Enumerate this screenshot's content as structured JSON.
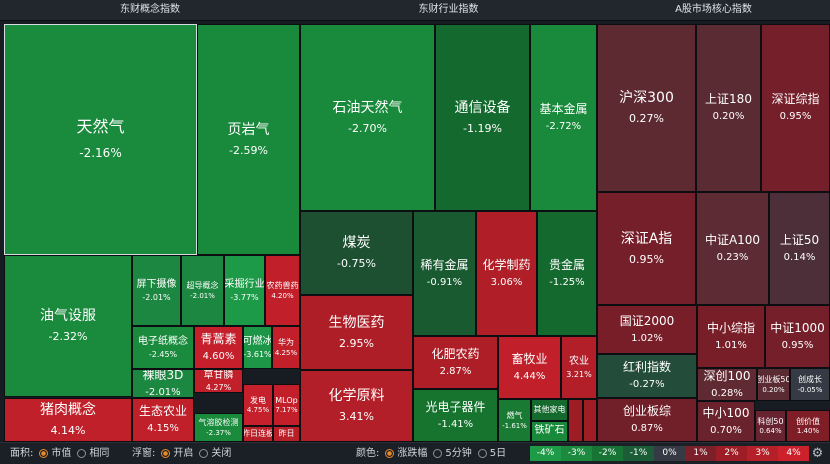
{
  "panels": [
    {
      "title": "东财概念指数",
      "tiles": [
        {
          "name": "天然气",
          "pct": "-2.16%",
          "color": "#1a8a3d",
          "selected": true
        },
        {
          "name": "页岩气",
          "pct": "-2.59%",
          "color": "#198a3c"
        },
        {
          "name": "油气设服",
          "pct": "-2.32%",
          "color": "#1a8a3d"
        },
        {
          "name": "屏下摄像",
          "pct": "-2.01%",
          "color": "#1c8740"
        },
        {
          "name": "超导概念",
          "pct": "-2.01%",
          "color": "#1c8740"
        },
        {
          "name": "采掘行业",
          "pct": "-3.77%",
          "color": "#1d9a48"
        },
        {
          "name": "农药兽药",
          "pct": "4.20%",
          "color": "#c1202a"
        },
        {
          "name": "电子纸概念",
          "pct": "-2.45%",
          "color": "#1a8a3d"
        },
        {
          "name": "青蒿素",
          "pct": "4.60%",
          "color": "#c51f2b"
        },
        {
          "name": "可燃冰",
          "pct": "-3.61%",
          "color": "#1d9747"
        },
        {
          "name": "华为",
          "pct": "4.25%",
          "color": "#c1202a"
        },
        {
          "name": "裸眼3D",
          "pct": "-2.01%",
          "color": "#1c8740"
        },
        {
          "name": "草甘膦",
          "pct": "4.27%",
          "color": "#c1202a"
        },
        {
          "name": "发电",
          "pct": "4.75%",
          "color": "#c5202b"
        },
        {
          "name": "MLOp",
          "pct": "7.17%",
          "color": "#c31f2a"
        },
        {
          "name": "猪肉概念",
          "pct": "4.14%",
          "color": "#bf2029"
        },
        {
          "name": "生态农业",
          "pct": "4.15%",
          "color": "#bf2029"
        },
        {
          "name": "气溶胶检测",
          "pct": "-2.37%",
          "color": "#1a8a3d"
        },
        {
          "name": "昨日连板",
          "pct": "",
          "color": "#b81f28"
        },
        {
          "name": "昨日",
          "pct": "",
          "color": "#b81f28"
        }
      ]
    },
    {
      "title": "东财行业指数",
      "tiles": [
        {
          "name": "石油天然气",
          "pct": "-2.70%",
          "color": "#198a3c"
        },
        {
          "name": "通信设备",
          "pct": "-1.19%",
          "color": "#146a2e"
        },
        {
          "name": "基本金属",
          "pct": "-2.72%",
          "color": "#198a3c"
        },
        {
          "name": "煤炭",
          "pct": "-0.75%",
          "color": "#1d4f31"
        },
        {
          "name": "稀有金属",
          "pct": "-0.91%",
          "color": "#1a5a31"
        },
        {
          "name": "化学制药",
          "pct": "3.06%",
          "color": "#b01e27"
        },
        {
          "name": "贵金属",
          "pct": "-1.25%",
          "color": "#146a2e"
        },
        {
          "name": "生物医药",
          "pct": "2.95%",
          "color": "#ad1e27"
        },
        {
          "name": "化肥农药",
          "pct": "2.87%",
          "color": "#ad1e27"
        },
        {
          "name": "畜牧业",
          "pct": "4.44%",
          "color": "#c1202a"
        },
        {
          "name": "农业",
          "pct": "3.21%",
          "color": "#b31f28"
        },
        {
          "name": "化学原料",
          "pct": "3.41%",
          "color": "#b31f28"
        },
        {
          "name": "光电子器件",
          "pct": "-1.41%",
          "color": "#16742f"
        },
        {
          "name": "燃气",
          "pct": "-1.61%",
          "color": "#187a33"
        },
        {
          "name": "其他家电",
          "pct": "",
          "color": "#156a2d"
        },
        {
          "name": "铁矿石",
          "pct": "",
          "color": "#198a3c"
        },
        {
          "name": "",
          "pct": "",
          "color": "#9e1d25"
        },
        {
          "name": "",
          "pct": "",
          "color": "#a11d26"
        }
      ]
    },
    {
      "title": "A股市场核心指数",
      "tiles": [
        {
          "name": "沪深300",
          "pct": "0.27%",
          "color": "#5e2a32"
        },
        {
          "name": "上证180",
          "pct": "0.20%",
          "color": "#5a2b33"
        },
        {
          "name": "深证综指",
          "pct": "0.95%",
          "color": "#741f29"
        },
        {
          "name": "深证A指",
          "pct": "0.95%",
          "color": "#741f29"
        },
        {
          "name": "中证A100",
          "pct": "0.23%",
          "color": "#5c2b33"
        },
        {
          "name": "上证50",
          "pct": "0.14%",
          "color": "#4c2f38"
        },
        {
          "name": "国证2000",
          "pct": "1.02%",
          "color": "#781e28"
        },
        {
          "name": "中小综指",
          "pct": "1.01%",
          "color": "#781e28"
        },
        {
          "name": "中证1000",
          "pct": "0.95%",
          "color": "#741f29"
        },
        {
          "name": "红利指数",
          "pct": "-0.27%",
          "color": "#244c3a"
        },
        {
          "name": "深创100",
          "pct": "0.28%",
          "color": "#5f2a32"
        },
        {
          "name": "创业板50",
          "pct": "0.20%",
          "color": "#5a2b33"
        },
        {
          "name": "创成长",
          "pct": "-0.05%",
          "color": "#363a45"
        },
        {
          "name": "创业板综",
          "pct": "0.87%",
          "color": "#711f29"
        },
        {
          "name": "中小100",
          "pct": "0.70%",
          "color": "#6a222c"
        },
        {
          "name": "科创50",
          "pct": "0.64%",
          "color": "#672430"
        },
        {
          "name": "创价值",
          "pct": "1.40%",
          "color": "#7f1e27"
        }
      ]
    }
  ],
  "bottombar": {
    "area": {
      "label": "面积:",
      "options": [
        "市值",
        "相同"
      ],
      "selected": 0
    },
    "float": {
      "label": "浮窗:",
      "options": [
        "开启",
        "关闭"
      ],
      "selected": 0
    },
    "color": {
      "label": "颜色:",
      "options": [
        "涨跌幅",
        "5分钟",
        "5日"
      ],
      "selected": 0
    },
    "legend": [
      {
        "label": "-4%",
        "color": "#1f9a46"
      },
      {
        "label": "-3%",
        "color": "#1b8a3e"
      },
      {
        "label": "-2%",
        "color": "#177434"
      },
      {
        "label": "-1%",
        "color": "#1a5d36"
      },
      {
        "label": "0%",
        "color": "#363a45"
      },
      {
        "label": "1%",
        "color": "#7b1f28"
      },
      {
        "label": "2%",
        "color": "#9c1d25"
      },
      {
        "label": "3%",
        "color": "#b51f28"
      },
      {
        "label": "4%",
        "color": "#cc202b"
      }
    ],
    "settings_icon": "gear-icon"
  }
}
